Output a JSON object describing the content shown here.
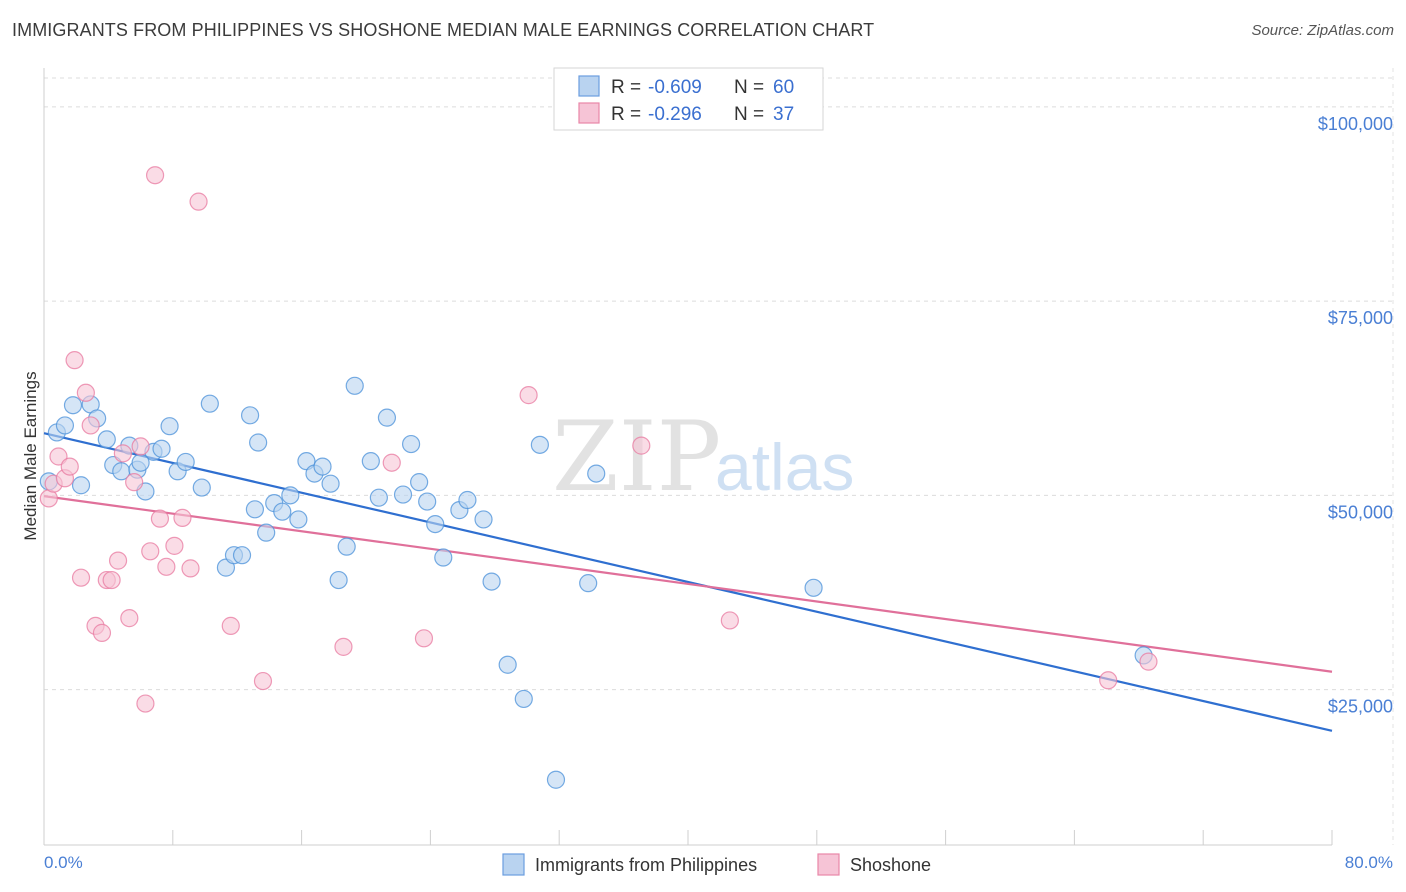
{
  "title": "IMMIGRANTS FROM PHILIPPINES VS SHOSHONE MEDIAN MALE EARNINGS CORRELATION CHART",
  "source": "Source: ZipAtlas.com",
  "watermark": {
    "zip": "ZIP",
    "atlas": "atlas"
  },
  "colors": {
    "blue": "#4a90d9",
    "blue_fill": "#b9d3f0",
    "blue_line": "#2f6fd0",
    "pink": "#e87aa0",
    "pink_fill": "#f6c4d6",
    "pink_line": "#e0709a",
    "axis_label": "#4a7fd4"
  },
  "legend": {
    "rows": [
      {
        "r_label": "R =",
        "r_value": "-0.609",
        "n_label": "N =",
        "n_value": "60"
      },
      {
        "r_label": "R =",
        "r_value": "-0.296",
        "n_label": "N =",
        "n_value": "37"
      }
    ]
  },
  "bottom_legend": [
    "Immigrants from Philippines",
    "Shoshone"
  ],
  "chart_data": {
    "type": "scatter",
    "title": "IMMIGRANTS FROM PHILIPPINES VS SHOSHONE MEDIAN MALE EARNINGS CORRELATION CHART",
    "xlabel": "",
    "ylabel": "Median Male Earnings",
    "xlim": [
      0,
      80
    ],
    "ylim": [
      5000,
      105000
    ],
    "x_tick_labels": [
      "0.0%",
      "80.0%"
    ],
    "y_tick_labels": [
      "$25,000",
      "$50,000",
      "$75,000",
      "$100,000"
    ],
    "y_ticks": [
      25000,
      50000,
      75000,
      100000
    ],
    "grid": true,
    "legend_position": "top-center",
    "series": [
      {
        "name": "Immigrants from Philippines",
        "color": "#4a90d9",
        "trend": {
          "x0": 0,
          "y0": 58000,
          "x1": 80,
          "y1": 19700
        },
        "points": [
          [
            0.3,
            51800
          ],
          [
            0.8,
            58100
          ],
          [
            1.3,
            59000
          ],
          [
            1.8,
            61600
          ],
          [
            2.3,
            51300
          ],
          [
            2.9,
            61700
          ],
          [
            3.3,
            59900
          ],
          [
            3.9,
            57200
          ],
          [
            4.3,
            53900
          ],
          [
            4.8,
            53100
          ],
          [
            5.3,
            56400
          ],
          [
            5.8,
            53300
          ],
          [
            6.3,
            50500
          ],
          [
            6.8,
            55600
          ],
          [
            7.3,
            56000
          ],
          [
            7.8,
            58900
          ],
          [
            8.3,
            53100
          ],
          [
            8.8,
            54300
          ],
          [
            9.8,
            51000
          ],
          [
            10.3,
            61800
          ],
          [
            11.3,
            40700
          ],
          [
            11.8,
            42300
          ],
          [
            12.3,
            42300
          ],
          [
            12.8,
            60300
          ],
          [
            13.3,
            56800
          ],
          [
            13.8,
            45200
          ],
          [
            14.3,
            49000
          ],
          [
            14.8,
            47900
          ],
          [
            15.3,
            50000
          ],
          [
            15.8,
            46900
          ],
          [
            16.3,
            54400
          ],
          [
            16.8,
            52800
          ],
          [
            17.3,
            53700
          ],
          [
            17.8,
            51500
          ],
          [
            18.3,
            39100
          ],
          [
            18.8,
            43400
          ],
          [
            19.3,
            64100
          ],
          [
            20.3,
            54400
          ],
          [
            20.8,
            49700
          ],
          [
            21.3,
            60000
          ],
          [
            22.3,
            50100
          ],
          [
            22.8,
            56600
          ],
          [
            23.3,
            51700
          ],
          [
            23.8,
            49200
          ],
          [
            24.3,
            46300
          ],
          [
            24.8,
            42000
          ],
          [
            25.8,
            48100
          ],
          [
            26.3,
            49400
          ],
          [
            27.3,
            46900
          ],
          [
            27.8,
            38900
          ],
          [
            28.8,
            28200
          ],
          [
            29.8,
            23800
          ],
          [
            30.8,
            56500
          ],
          [
            31.8,
            13400
          ],
          [
            33.8,
            38700
          ],
          [
            34.3,
            52800
          ],
          [
            47.8,
            38100
          ],
          [
            68.3,
            29400
          ],
          [
            6.0,
            54200
          ],
          [
            13.1,
            48200
          ]
        ]
      },
      {
        "name": "Shoshone",
        "color": "#e87aa0",
        "trend": {
          "x0": 0,
          "y0": 49900,
          "x1": 80,
          "y1": 27300
        },
        "points": [
          [
            0.3,
            49600
          ],
          [
            0.6,
            51500
          ],
          [
            0.9,
            55000
          ],
          [
            1.3,
            52200
          ],
          [
            1.6,
            53700
          ],
          [
            1.9,
            67400
          ],
          [
            2.3,
            39400
          ],
          [
            2.6,
            63200
          ],
          [
            2.9,
            59000
          ],
          [
            3.2,
            33200
          ],
          [
            3.6,
            32300
          ],
          [
            3.9,
            39100
          ],
          [
            4.2,
            39100
          ],
          [
            4.6,
            41600
          ],
          [
            4.9,
            55400
          ],
          [
            5.3,
            34200
          ],
          [
            5.6,
            51700
          ],
          [
            6.0,
            56300
          ],
          [
            6.3,
            23200
          ],
          [
            6.6,
            42800
          ],
          [
            6.9,
            91200
          ],
          [
            7.2,
            47000
          ],
          [
            7.6,
            40800
          ],
          [
            8.1,
            43500
          ],
          [
            8.6,
            47100
          ],
          [
            9.1,
            40600
          ],
          [
            9.6,
            87800
          ],
          [
            11.6,
            33200
          ],
          [
            13.6,
            26100
          ],
          [
            18.6,
            30500
          ],
          [
            21.6,
            54200
          ],
          [
            23.6,
            31600
          ],
          [
            30.1,
            62900
          ],
          [
            37.1,
            56400
          ],
          [
            42.6,
            33900
          ],
          [
            66.1,
            26200
          ],
          [
            68.6,
            28600
          ]
        ]
      }
    ]
  }
}
